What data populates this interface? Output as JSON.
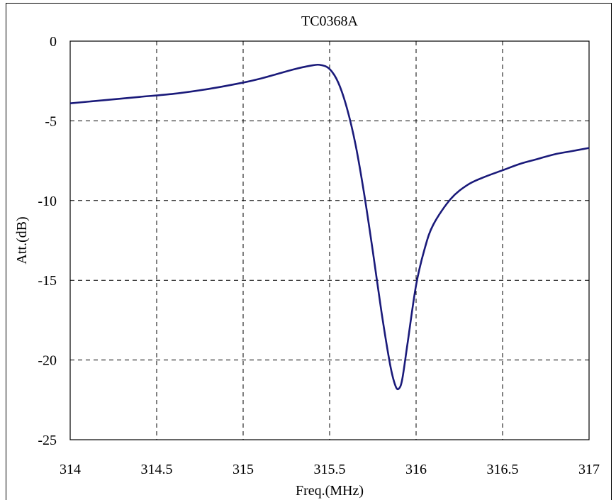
{
  "chart_data": {
    "type": "line",
    "title": "TC0368A",
    "xlabel": "Freq.(MHz)",
    "ylabel": "Att.(dB)",
    "xlim": [
      314,
      317
    ],
    "ylim": [
      -25,
      0
    ],
    "xticks": [
      314,
      314.5,
      315,
      315.5,
      316,
      316.5,
      317
    ],
    "xtick_labels": [
      "314",
      "314.5",
      "315",
      "315.5",
      "316",
      "316.5",
      "317"
    ],
    "yticks": [
      0,
      -5,
      -10,
      -15,
      -20,
      -25
    ],
    "ytick_labels": [
      "0",
      "-5",
      "-10",
      "-15",
      "-20",
      "-25"
    ],
    "grid": true,
    "legend": "none",
    "colors": {
      "series": "#1a1a7a",
      "grid": "#000000"
    },
    "series": [
      {
        "x": [
          314.0,
          314.2,
          314.4,
          314.6,
          314.8,
          315.0,
          315.1,
          315.2,
          315.3,
          315.4,
          315.45,
          315.5,
          315.55,
          315.6,
          315.65,
          315.7,
          315.75,
          315.8,
          315.85,
          315.88,
          315.9,
          315.92,
          315.95,
          316.0,
          316.05,
          316.1,
          316.2,
          316.3,
          316.4,
          316.5,
          316.6,
          316.7,
          316.8,
          316.9,
          317.0
        ],
        "y": [
          -3.9,
          -3.7,
          -3.5,
          -3.3,
          -3.0,
          -2.6,
          -2.35,
          -2.05,
          -1.75,
          -1.52,
          -1.5,
          -1.75,
          -2.6,
          -4.2,
          -6.5,
          -9.6,
          -13.2,
          -17.0,
          -20.3,
          -21.6,
          -21.8,
          -21.2,
          -19.0,
          -15.3,
          -13.0,
          -11.5,
          -9.9,
          -9.0,
          -8.5,
          -8.1,
          -7.7,
          -7.4,
          -7.1,
          -6.9,
          -6.7
        ]
      }
    ]
  }
}
